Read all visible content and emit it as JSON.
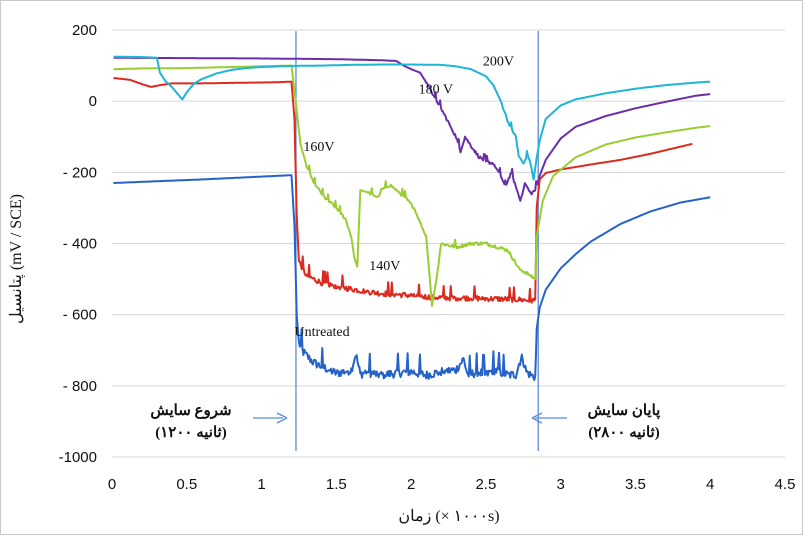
{
  "chart_data": {
    "type": "line",
    "xlabel": "زمان (× ۱۰۰۰s)",
    "ylabel": "پتانسیل (mV / SCE)",
    "xlim": [
      0,
      4.5
    ],
    "ylim": [
      -1000,
      200
    ],
    "x_ticks": [
      {
        "v": 0,
        "label": "0"
      },
      {
        "v": 0.5,
        "label": "0.5"
      },
      {
        "v": 1,
        "label": "1"
      },
      {
        "v": 1.5,
        "label": "1.5"
      },
      {
        "v": 2,
        "label": "2"
      },
      {
        "v": 2.5,
        "label": "2.5"
      },
      {
        "v": 3,
        "label": "3"
      },
      {
        "v": 3.5,
        "label": "3.5"
      },
      {
        "v": 4,
        "label": "4"
      },
      {
        "v": 4.5,
        "label": "4.5"
      }
    ],
    "y_ticks": [
      {
        "v": 200,
        "label": "200"
      },
      {
        "v": 0,
        "label": "0"
      },
      {
        "v": -200,
        "label": "- 200"
      },
      {
        "v": -400,
        "label": "- 400"
      },
      {
        "v": -600,
        "label": "- 600"
      },
      {
        "v": -800,
        "label": "- 800"
      },
      {
        "v": -1000,
        "label": "-1000"
      }
    ],
    "grid": "horizontal",
    "series": [
      {
        "name": "Untreated",
        "color": "#2563c9",
        "label_at": [
          1.22,
          -660
        ],
        "points": [
          [
            0.01,
            -230
          ],
          [
            0.3,
            -225
          ],
          [
            0.6,
            -220
          ],
          [
            0.9,
            -214
          ],
          [
            1.1,
            -210
          ],
          [
            1.2,
            -208
          ],
          [
            1.22,
            -350
          ],
          [
            1.235,
            -600
          ],
          [
            1.25,
            -680
          ],
          [
            1.28,
            -705
          ],
          [
            1.3,
            -715
          ],
          [
            1.35,
            -735
          ],
          [
            1.4,
            -745
          ],
          [
            1.5,
            -765
          ],
          [
            1.6,
            -755
          ],
          [
            1.63,
            -710
          ],
          [
            1.66,
            -768
          ],
          [
            1.7,
            -760
          ],
          [
            1.8,
            -770
          ],
          [
            1.9,
            -764
          ],
          [
            2.0,
            -760
          ],
          [
            2.1,
            -770
          ],
          [
            2.2,
            -760
          ],
          [
            2.3,
            -755
          ],
          [
            2.35,
            -725
          ],
          [
            2.38,
            -770
          ],
          [
            2.45,
            -760
          ],
          [
            2.5,
            -770
          ],
          [
            2.55,
            -755
          ],
          [
            2.6,
            -762
          ],
          [
            2.65,
            -770
          ],
          [
            2.7,
            -768
          ],
          [
            2.74,
            -715
          ],
          [
            2.77,
            -760
          ],
          [
            2.8,
            -770
          ],
          [
            2.83,
            -775
          ],
          [
            2.84,
            -640
          ],
          [
            2.86,
            -580
          ],
          [
            2.9,
            -530
          ],
          [
            3.0,
            -470
          ],
          [
            3.1,
            -430
          ],
          [
            3.2,
            -395
          ],
          [
            3.4,
            -345
          ],
          [
            3.6,
            -310
          ],
          [
            3.8,
            -285
          ],
          [
            4.0,
            -270
          ]
        ],
        "noise": [
          [
            1.25,
            2.83,
            42
          ]
        ]
      },
      {
        "name": "140V",
        "color": "#dd2a1e",
        "label_at": [
          1.72,
          -475
        ],
        "points": [
          [
            0.01,
            65
          ],
          [
            0.12,
            60
          ],
          [
            0.2,
            48
          ],
          [
            0.26,
            40
          ],
          [
            0.32,
            45
          ],
          [
            0.4,
            50
          ],
          [
            0.6,
            50
          ],
          [
            0.9,
            52
          ],
          [
            1.1,
            53
          ],
          [
            1.2,
            55
          ],
          [
            1.22,
            -50
          ],
          [
            1.235,
            -320
          ],
          [
            1.25,
            -450
          ],
          [
            1.3,
            -490
          ],
          [
            1.4,
            -510
          ],
          [
            1.5,
            -520
          ],
          [
            1.6,
            -528
          ],
          [
            1.7,
            -535
          ],
          [
            1.8,
            -540
          ],
          [
            1.9,
            -543
          ],
          [
            2.0,
            -546
          ],
          [
            2.1,
            -550
          ],
          [
            2.2,
            -552
          ],
          [
            2.3,
            -553
          ],
          [
            2.4,
            -553
          ],
          [
            2.5,
            -555
          ],
          [
            2.6,
            -556
          ],
          [
            2.7,
            -557
          ],
          [
            2.8,
            -560
          ],
          [
            2.83,
            -560
          ],
          [
            2.84,
            -300
          ],
          [
            2.86,
            -220
          ],
          [
            2.9,
            -202
          ],
          [
            3.0,
            -192
          ],
          [
            3.2,
            -178
          ],
          [
            3.4,
            -165
          ],
          [
            3.6,
            -148
          ],
          [
            3.8,
            -128
          ],
          [
            3.88,
            -120
          ]
        ],
        "noise": [
          [
            1.25,
            2.83,
            26
          ]
        ]
      },
      {
        "name": "160V",
        "color": "#9acd32",
        "label_at": [
          1.28,
          -140
        ],
        "points": [
          [
            0.01,
            90
          ],
          [
            0.2,
            92
          ],
          [
            0.5,
            93
          ],
          [
            0.8,
            96
          ],
          [
            1.0,
            98
          ],
          [
            1.2,
            100
          ],
          [
            1.22,
            30
          ],
          [
            1.26,
            -120
          ],
          [
            1.3,
            -180
          ],
          [
            1.35,
            -230
          ],
          [
            1.42,
            -270
          ],
          [
            1.5,
            -300
          ],
          [
            1.56,
            -330
          ],
          [
            1.6,
            -380
          ],
          [
            1.62,
            -440
          ],
          [
            1.64,
            -465
          ],
          [
            1.66,
            -250
          ],
          [
            1.7,
            -255
          ],
          [
            1.78,
            -270
          ],
          [
            1.8,
            -250
          ],
          [
            1.86,
            -235
          ],
          [
            1.9,
            -250
          ],
          [
            1.96,
            -270
          ],
          [
            2.02,
            -300
          ],
          [
            2.06,
            -340
          ],
          [
            2.1,
            -380
          ],
          [
            2.12,
            -475
          ],
          [
            2.14,
            -575
          ],
          [
            2.17,
            -500
          ],
          [
            2.2,
            -400
          ],
          [
            2.3,
            -410
          ],
          [
            2.4,
            -400
          ],
          [
            2.5,
            -400
          ],
          [
            2.58,
            -410
          ],
          [
            2.65,
            -420
          ],
          [
            2.72,
            -470
          ],
          [
            2.76,
            -480
          ],
          [
            2.8,
            -490
          ],
          [
            2.83,
            -500
          ],
          [
            2.84,
            -380
          ],
          [
            2.88,
            -280
          ],
          [
            2.95,
            -210
          ],
          [
            3.1,
            -158
          ],
          [
            3.3,
            -122
          ],
          [
            3.5,
            -102
          ],
          [
            3.7,
            -88
          ],
          [
            3.9,
            -75
          ],
          [
            4.0,
            -70
          ]
        ],
        "noise": [
          [
            1.3,
            1.6,
            14
          ],
          [
            1.7,
            2.1,
            14
          ],
          [
            2.18,
            2.82,
            16
          ]
        ]
      },
      {
        "name": "180 V",
        "color": "#6a2fa8",
        "label_at": [
          2.05,
          22
        ],
        "points": [
          [
            0.01,
            122
          ],
          [
            0.5,
            121
          ],
          [
            1.0,
            120
          ],
          [
            1.5,
            118
          ],
          [
            1.7,
            116
          ],
          [
            1.8,
            115
          ],
          [
            1.9,
            113
          ],
          [
            1.95,
            100
          ],
          [
            2.0,
            90
          ],
          [
            2.06,
            80
          ],
          [
            2.12,
            40
          ],
          [
            2.2,
            -20
          ],
          [
            2.25,
            -60
          ],
          [
            2.3,
            -100
          ],
          [
            2.33,
            -140
          ],
          [
            2.36,
            -100
          ],
          [
            2.4,
            -125
          ],
          [
            2.45,
            -155
          ],
          [
            2.5,
            -170
          ],
          [
            2.55,
            -175
          ],
          [
            2.6,
            -210
          ],
          [
            2.63,
            -240
          ],
          [
            2.67,
            -200
          ],
          [
            2.7,
            -240
          ],
          [
            2.73,
            -280
          ],
          [
            2.76,
            -230
          ],
          [
            2.8,
            -260
          ],
          [
            2.83,
            -250
          ],
          [
            2.86,
            -210
          ],
          [
            2.9,
            -165
          ],
          [
            3.0,
            -105
          ],
          [
            3.1,
            -72
          ],
          [
            3.3,
            -42
          ],
          [
            3.5,
            -20
          ],
          [
            3.7,
            -2
          ],
          [
            3.9,
            15
          ],
          [
            4.0,
            20
          ]
        ],
        "noise": [
          [
            2.1,
            2.84,
            14
          ]
        ]
      },
      {
        "name": "200V",
        "color": "#1fb5d4",
        "label_at": [
          2.48,
          100
        ],
        "points": [
          [
            0.01,
            125
          ],
          [
            0.2,
            124
          ],
          [
            0.3,
            122
          ],
          [
            0.32,
            80
          ],
          [
            0.36,
            55
          ],
          [
            0.4,
            40
          ],
          [
            0.44,
            20
          ],
          [
            0.47,
            5
          ],
          [
            0.5,
            25
          ],
          [
            0.55,
            50
          ],
          [
            0.6,
            62
          ],
          [
            0.7,
            78
          ],
          [
            0.8,
            88
          ],
          [
            0.9,
            93
          ],
          [
            1.0,
            96
          ],
          [
            1.2,
            99
          ],
          [
            1.4,
            100
          ],
          [
            1.6,
            102
          ],
          [
            1.8,
            103
          ],
          [
            2.0,
            103
          ],
          [
            2.2,
            102
          ],
          [
            2.3,
            98
          ],
          [
            2.4,
            90
          ],
          [
            2.5,
            70
          ],
          [
            2.55,
            45
          ],
          [
            2.6,
            0
          ],
          [
            2.65,
            -60
          ],
          [
            2.7,
            -100
          ],
          [
            2.72,
            -155
          ],
          [
            2.75,
            -175
          ],
          [
            2.78,
            -150
          ],
          [
            2.8,
            -180
          ],
          [
            2.82,
            -220
          ],
          [
            2.84,
            -160
          ],
          [
            2.86,
            -110
          ],
          [
            2.9,
            -50
          ],
          [
            3.0,
            -12
          ],
          [
            3.1,
            5
          ],
          [
            3.3,
            22
          ],
          [
            3.5,
            35
          ],
          [
            3.7,
            45
          ],
          [
            3.9,
            52
          ],
          [
            4.0,
            55
          ]
        ],
        "noise": [
          [
            2.6,
            2.84,
            12
          ]
        ]
      }
    ],
    "annotations": {
      "start_line": 1.23,
      "end_line": 2.85,
      "start_text_1": "شروع سایش",
      "start_text_2": "(۱۲۰۰ ثانیه)",
      "end_text_1": "پایان سایش",
      "end_text_2": "(۲۸۰۰ ثانیه)",
      "line_color": "#5b8dd6"
    }
  }
}
